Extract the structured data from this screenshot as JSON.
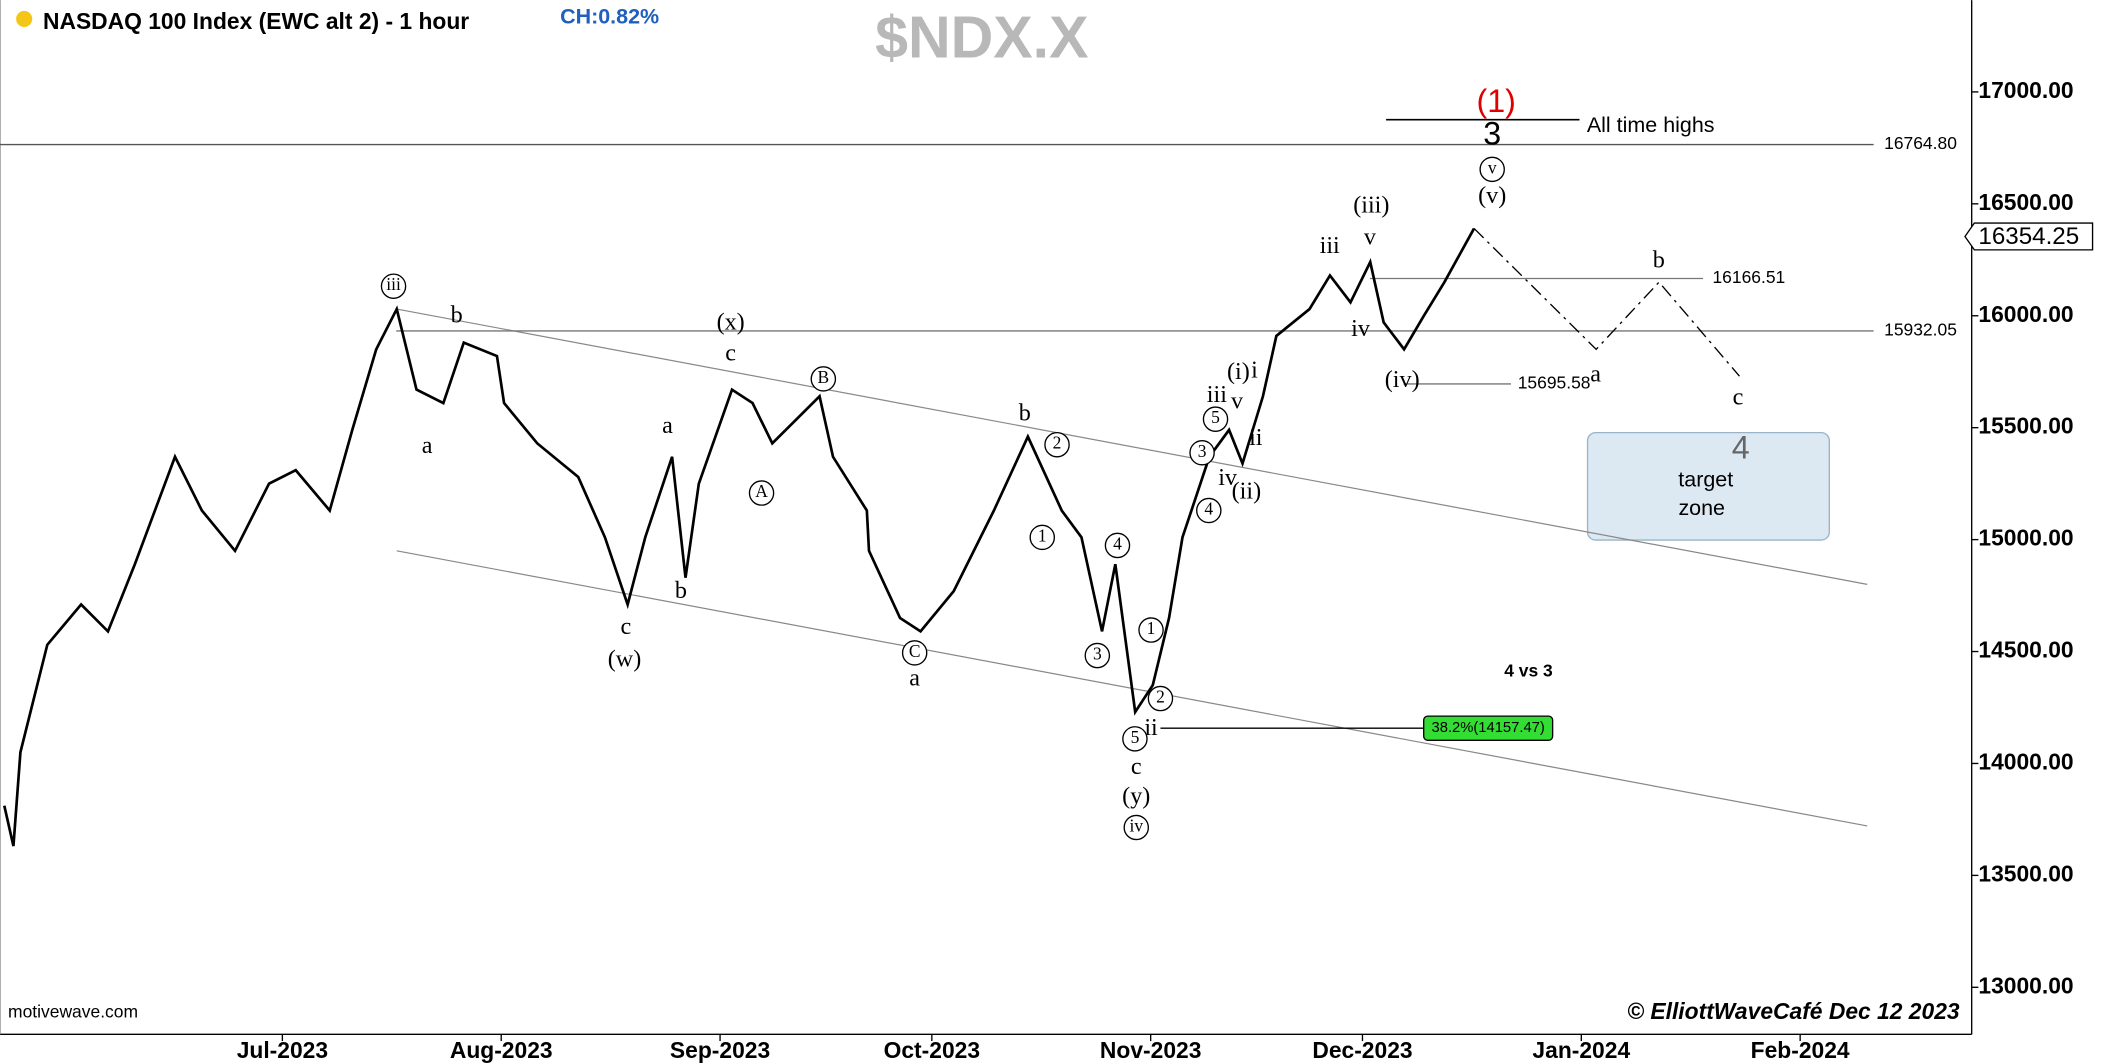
{
  "chart_data": {
    "type": "line",
    "title": "NASDAQ 100 Index (EWC alt 2) - 1 hour",
    "change": "CH:0.82%",
    "symbol": "$NDX.X",
    "source": "motivewave.com",
    "credit": "© ElliottWaveCafé  Dec 12 2023",
    "xlim": [
      -40,
      239.3
    ],
    "ylim": [
      12790,
      17410
    ],
    "xticks": [
      {
        "value": 0,
        "label": "Jul-2023"
      },
      {
        "value": 31,
        "label": "Aug-2023"
      },
      {
        "value": 62,
        "label": "Sep-2023"
      },
      {
        "value": 92,
        "label": "Oct-2023"
      },
      {
        "value": 123,
        "label": "Nov-2023"
      },
      {
        "value": 153,
        "label": "Dec-2023"
      },
      {
        "value": 184,
        "label": "Jan-2024"
      },
      {
        "value": 215,
        "label": "Feb-2024"
      }
    ],
    "yticks": [
      {
        "value": 13000,
        "label": "13000.00"
      },
      {
        "value": 13500,
        "label": "13500.00"
      },
      {
        "value": 14000,
        "label": "14000.00"
      },
      {
        "value": 14500,
        "label": "14500.00"
      },
      {
        "value": 15000,
        "label": "15000.00"
      },
      {
        "value": 15500,
        "label": "15500.00"
      },
      {
        "value": 16000,
        "label": "16000.00"
      },
      {
        "value": 16500,
        "label": "16500.00"
      },
      {
        "value": 17000,
        "label": "17000.00"
      }
    ],
    "series": [
      {
        "color": "#000000",
        "style": "solid",
        "x": [
          -39.4,
          -38.1,
          -37.1,
          -33.3,
          -28.5,
          -24.7,
          -20.9,
          -15.2,
          -11.4,
          -6.7,
          -1.9,
          1.9,
          6.7,
          9.9,
          13.3,
          16.2,
          19.0,
          22.8,
          25.7,
          30.4,
          31.4,
          36.1,
          41.9,
          45.7,
          48.9,
          51.4,
          55.2,
          57.1,
          59.0,
          63.7,
          66.6,
          69.4,
          76.1,
          78.0,
          82.8,
          83.1,
          87.5,
          90.4,
          95.1,
          100.8,
          105.6,
          110.4,
          113.2,
          116.1,
          118.0,
          120.8,
          123.3,
          125.6,
          127.5,
          131.3,
          134.1,
          136.0,
          138.9,
          140.8,
          145.5,
          148.4,
          151.3,
          154.1,
          156.0,
          158.9,
          161.7,
          164.6,
          168.8
        ],
        "values": [
          13811,
          13631,
          14050,
          14530,
          14710,
          14590,
          14890,
          15370,
          15130,
          14950,
          15250,
          15310,
          15130,
          15490,
          15850,
          16030,
          15670,
          15610,
          15880,
          15820,
          15610,
          15430,
          15280,
          15010,
          14710,
          15010,
          15370,
          14830,
          15250,
          15670,
          15610,
          15430,
          15640,
          15370,
          15130,
          14950,
          14650,
          14590,
          14770,
          15130,
          15460,
          15130,
          15010,
          14590,
          14890,
          14230,
          14350,
          14650,
          15010,
          15370,
          15490,
          15340,
          15640,
          15910,
          16030,
          16180,
          16060,
          16240,
          15970,
          15850,
          16000,
          16150,
          16390
        ]
      },
      {
        "color": "#000000",
        "style": "dash-dot",
        "x": [
          168.8,
          186.1,
          195.0,
          206.4
        ],
        "values": [
          16390,
          15850,
          16150,
          15730
        ]
      }
    ],
    "trendlines": [
      {
        "x": [
          16.2,
          224.5
        ],
        "values": [
          16030,
          14800
        ]
      },
      {
        "x": [
          16.2,
          224.5
        ],
        "values": [
          14950,
          13721
        ]
      }
    ],
    "levels": [
      {
        "value": 16764.8,
        "label": "16764.80"
      },
      {
        "value": 16166.51,
        "label": "16166.51"
      },
      {
        "value": 15932.05,
        "label": "15932.05"
      },
      {
        "value": 15695.58,
        "label": "15695.58"
      }
    ],
    "last_price": {
      "value": 16354.25,
      "label": "16354.25"
    },
    "fib": {
      "value": 14157.47,
      "label": "38.2%(14157.47)"
    },
    "annotations": [
      "iii",
      "b",
      "a",
      "(x)",
      "c",
      "B",
      "A",
      "a",
      "c",
      "(w)",
      "b",
      "C",
      "a",
      "b",
      "2",
      "1",
      "4",
      "3",
      "1",
      "2",
      "ii",
      "5",
      "c",
      "(y)",
      "iv",
      "3",
      "4",
      "5",
      "iii",
      "iv",
      "(ii)",
      "(i)",
      "i",
      "v",
      "ii",
      "iii",
      "v",
      "(iii)",
      "iv",
      "(iv)",
      "v",
      "(v)",
      "3",
      "(1)",
      "a",
      "b",
      "c",
      "4",
      "target",
      "zone",
      "All time highs",
      "4 vs 3"
    ]
  }
}
